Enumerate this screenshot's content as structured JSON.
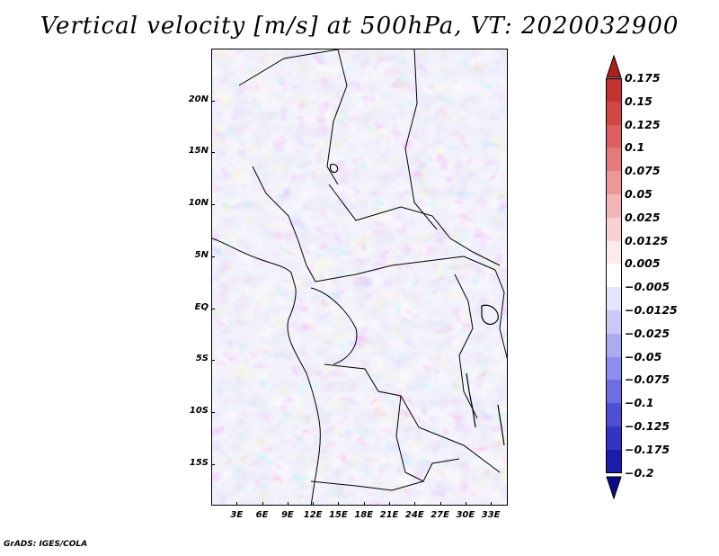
{
  "title": "Vertical velocity [m/s] at 500hPa, VT: 2020032900",
  "credit": "GrADS: IGES/COLA",
  "map": {
    "region": "Central Africa",
    "lat_range": [
      -19,
      25
    ],
    "lon_range": [
      0,
      35
    ],
    "lat_labels": [
      {
        "text": "20N",
        "lat": 20
      },
      {
        "text": "15N",
        "lat": 15
      },
      {
        "text": "10N",
        "lat": 10
      },
      {
        "text": "5N",
        "lat": 5
      },
      {
        "text": "EQ",
        "lat": 0
      },
      {
        "text": "5S",
        "lat": -5
      },
      {
        "text": "10S",
        "lat": -10
      },
      {
        "text": "15S",
        "lat": -15
      }
    ],
    "lon_labels": [
      {
        "text": "3E",
        "lon": 3
      },
      {
        "text": "6E",
        "lon": 6
      },
      {
        "text": "9E",
        "lon": 9
      },
      {
        "text": "12E",
        "lon": 12
      },
      {
        "text": "15E",
        "lon": 15
      },
      {
        "text": "18E",
        "lon": 18
      },
      {
        "text": "21E",
        "lon": 21
      },
      {
        "text": "24E",
        "lon": 24
      },
      {
        "text": "27E",
        "lon": 27
      },
      {
        "text": "30E",
        "lon": 30
      },
      {
        "text": "33E",
        "lon": 33
      }
    ]
  },
  "legend": {
    "labels": [
      "0.175",
      "0.15",
      "0.125",
      "0.1",
      "0.075",
      "0.05",
      "0.025",
      "0.0125",
      "0.005",
      "−0.005",
      "−0.0125",
      "−0.025",
      "−0.05",
      "−0.075",
      "−0.1",
      "−0.125",
      "−0.175",
      "−0.2"
    ],
    "colors": [
      "#b01e1e",
      "#c43232",
      "#d24646",
      "#dc5f5f",
      "#e47a7a",
      "#ec9898",
      "#f3b6b6",
      "#f8d2d2",
      "#fcebeb",
      "#ffffff",
      "#e4e4fa",
      "#c9c9f5",
      "#ababf0",
      "#8d8deb",
      "#6e6ee2",
      "#4f4fd4",
      "#3434c2",
      "#1c1ca8",
      "#0b0b8a"
    ]
  }
}
